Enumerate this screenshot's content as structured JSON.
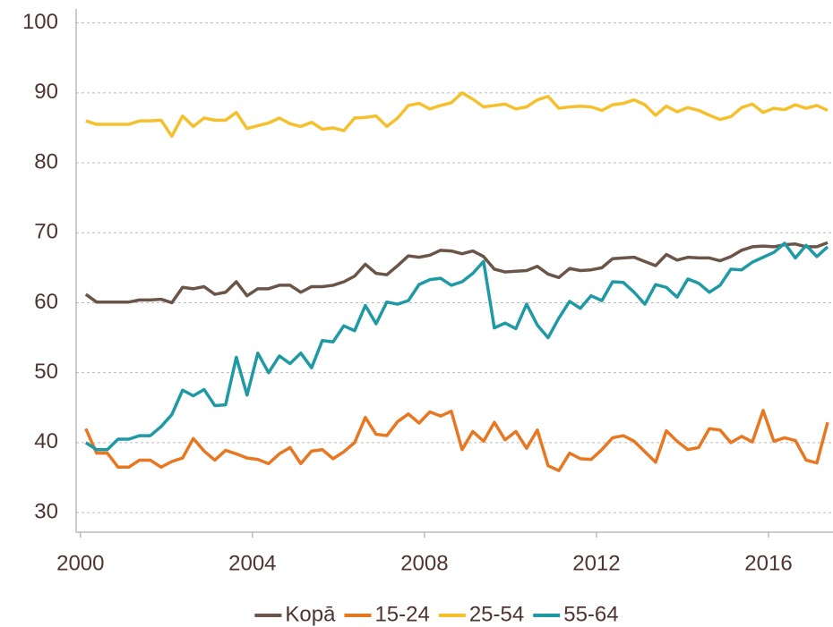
{
  "chart_data": {
    "type": "line",
    "x": [
      2000.125,
      2000.375,
      2000.625,
      2000.875,
      2001.125,
      2001.375,
      2001.625,
      2001.875,
      2002.125,
      2002.375,
      2002.625,
      2002.875,
      2003.125,
      2003.375,
      2003.625,
      2003.875,
      2004.125,
      2004.375,
      2004.625,
      2004.875,
      2005.125,
      2005.375,
      2005.625,
      2005.875,
      2006.125,
      2006.375,
      2006.625,
      2006.875,
      2007.125,
      2007.375,
      2007.625,
      2007.875,
      2008.125,
      2008.375,
      2008.625,
      2008.875,
      2009.125,
      2009.375,
      2009.625,
      2009.875,
      2010.125,
      2010.375,
      2010.625,
      2010.875,
      2011.125,
      2011.375,
      2011.625,
      2011.875,
      2012.125,
      2012.375,
      2012.625,
      2012.875,
      2013.125,
      2013.375,
      2013.625,
      2013.875,
      2014.125,
      2014.375,
      2014.625,
      2014.875,
      2015.125,
      2015.375,
      2015.625,
      2015.875,
      2016.125,
      2016.375,
      2016.625,
      2016.875,
      2017.125,
      2017.375
    ],
    "series": [
      {
        "name": "Kopā",
        "color": "#6b5448",
        "values": [
          61.2,
          60.1,
          60.1,
          60.1,
          60.1,
          60.4,
          60.4,
          60.5,
          60.0,
          62.2,
          62.0,
          62.3,
          61.2,
          61.5,
          63.0,
          61.0,
          62.0,
          62.0,
          62.5,
          62.5,
          61.5,
          62.3,
          62.3,
          62.5,
          63.0,
          63.8,
          65.5,
          64.2,
          64.0,
          65.3,
          66.7,
          66.5,
          66.8,
          67.5,
          67.4,
          67.0,
          67.4,
          66.6,
          64.8,
          64.4,
          64.5,
          64.6,
          65.2,
          64.1,
          63.6,
          64.9,
          64.6,
          64.7,
          65.0,
          66.3,
          66.4,
          66.5,
          65.9,
          65.3,
          66.9,
          66.1,
          66.5,
          66.4,
          66.4,
          66.0,
          66.6,
          67.5,
          68.0,
          68.1,
          68.0,
          68.3,
          68.4,
          68.0,
          68.0,
          68.6
        ]
      },
      {
        "name": "15-24",
        "color": "#e87722",
        "values": [
          42,
          38.5,
          38.5,
          36.5,
          36.5,
          37.5,
          37.5,
          36.5,
          37.3,
          37.8,
          40.6,
          38.8,
          37.5,
          38.9,
          38.4,
          37.8,
          37.6,
          37.0,
          38.4,
          39.3,
          37.0,
          38.8,
          39.0,
          37.7,
          38.7,
          40.0,
          43.6,
          41.2,
          41.0,
          43.0,
          44.1,
          42.8,
          44.4,
          43.8,
          44.5,
          39.0,
          41.6,
          40.2,
          42.9,
          40.4,
          41.6,
          39.2,
          41.8,
          36.7,
          36.0,
          38.5,
          37.7,
          37.6,
          39.0,
          40.7,
          41.0,
          40.2,
          38.7,
          37.2,
          41.7,
          40.2,
          39.0,
          39.3,
          42.0,
          41.8,
          40.0,
          40.9,
          40.1,
          44.6,
          40.2,
          40.7,
          40.3,
          37.5,
          37.1,
          42.9
        ]
      },
      {
        "name": "25-54",
        "color": "#f5c02c",
        "values": [
          86,
          85.5,
          85.5,
          85.5,
          85.5,
          86,
          86,
          86.1,
          83.8,
          86.7,
          85.2,
          86.4,
          86.1,
          86.1,
          87.2,
          84.9,
          85.3,
          85.7,
          86.4,
          85.6,
          85.2,
          85.8,
          84.8,
          85.0,
          84.6,
          86.4,
          86.5,
          86.7,
          85.2,
          86.4,
          88.2,
          88.5,
          87.7,
          88.2,
          88.6,
          90.0,
          89.1,
          88.0,
          88.2,
          88.4,
          87.7,
          88.0,
          89.0,
          89.5,
          87.8,
          88.0,
          88.1,
          88.0,
          87.5,
          88.3,
          88.5,
          89.0,
          88.3,
          86.8,
          88.1,
          87.3,
          87.9,
          87.5,
          86.8,
          86.2,
          86.6,
          87.9,
          88.4,
          87.2,
          87.8,
          87.6,
          88.3,
          87.8,
          88.2,
          87.5
        ]
      },
      {
        "name": "55-64",
        "color": "#1f9aa5",
        "values": [
          40,
          39,
          39,
          40.5,
          40.5,
          41,
          41,
          42.3,
          44,
          47.5,
          46.7,
          47.6,
          45.3,
          45.4,
          52.2,
          46.8,
          52.8,
          50,
          52.4,
          51.3,
          52.8,
          50.7,
          54.6,
          54.4,
          56.7,
          56,
          59.6,
          57,
          60.1,
          59.8,
          60.3,
          62.6,
          63.3,
          63.5,
          62.5,
          63,
          64.2,
          65.9,
          56.4,
          57.1,
          56.3,
          59.8,
          56.8,
          55,
          57.8,
          60.2,
          59.2,
          61,
          60.3,
          63,
          62.9,
          61.5,
          59.8,
          62.6,
          62.2,
          60.8,
          63.4,
          62.8,
          61.5,
          62.5,
          64.8,
          64.7,
          65.8,
          66.5,
          67.2,
          68.5,
          66.4,
          68.2,
          66.6,
          68
        ]
      }
    ],
    "xlim": [
      1999.9,
      2017.5
    ],
    "xticks": [
      2000,
      2004,
      2008,
      2012,
      2016
    ],
    "ylim": [
      27.2,
      102
    ],
    "yticks": [
      30,
      40,
      50,
      60,
      70,
      80,
      90,
      100
    ],
    "grid": true,
    "legend": "bottom"
  }
}
